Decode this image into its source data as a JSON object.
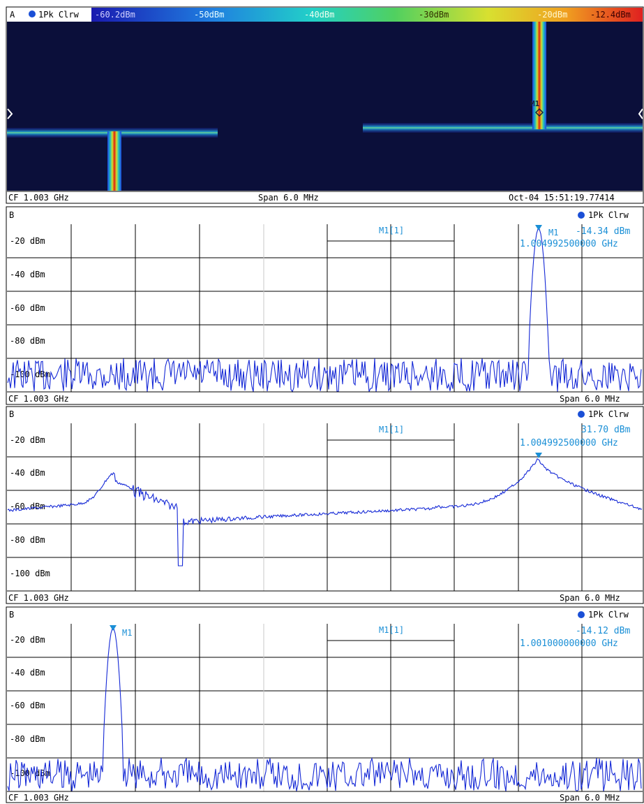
{
  "palette": {
    "background": "#ffffff",
    "plot_bg": "#ffffff",
    "wf_bg": "#0b0f3a",
    "trace": "#1428d6",
    "marker": "#1a8fd6",
    "grid": "#000000",
    "grid_light": "#c8c8c8",
    "border": "#000000"
  },
  "waterfall": {
    "window_label": "A",
    "trace_label": "1Pk Clrw",
    "trace_icon": "circle-dot-icon",
    "scale_labels": [
      "-60.2dBm",
      "-50dBm",
      "-40dBm",
      "-30dBm",
      "-20dBm",
      "-12.4dBm"
    ],
    "marker_label": "M1",
    "footer": {
      "center_freq": "CF 1.003 GHz",
      "span": "Span 6.0 MHz",
      "timestamp": "Oct-04 15:51:19.77414"
    }
  },
  "panes": [
    {
      "window_label": "B",
      "trace_label": "1Pk Clrw",
      "marker_box_label": "M1[1]",
      "marker_level": "-14.34 dBm",
      "marker_freq": "1.004992500000 GHz",
      "marker_tag": "M1",
      "y_labels": [
        "-20 dBm",
        "-40 dBm",
        "-60 dBm",
        "-80 dBm",
        "-100 dBm"
      ],
      "footer": {
        "center_freq": "CF 1.003 GHz",
        "span": "Span 6.0 MHz"
      }
    },
    {
      "window_label": "B",
      "trace_label": "1Pk Clrw",
      "marker_box_label": "M1[1]",
      "marker_level": "31.70 dBm",
      "marker_freq": "1.004992500000 GHz",
      "marker_tag": "M1",
      "y_labels": [
        "-20 dBm",
        "-40 dBm",
        "-60 dBm",
        "-80 dBm",
        "-100 dBm"
      ],
      "footer": {
        "center_freq": "CF 1.003 GHz",
        "span": "Span 6.0 MHz"
      }
    },
    {
      "window_label": "B",
      "trace_label": "1Pk Clrw",
      "marker_box_label": "M1[1]",
      "marker_level": "-14.12 dBm",
      "marker_freq": "1.001000000000 GHz",
      "marker_tag": "M1",
      "y_labels": [
        "-20 dBm",
        "-40 dBm",
        "-60 dBm",
        "-80 dBm",
        "-100 dBm"
      ],
      "footer": {
        "center_freq": "CF 1.003 GHz",
        "span": "Span 6.0 MHz"
      }
    }
  ]
}
